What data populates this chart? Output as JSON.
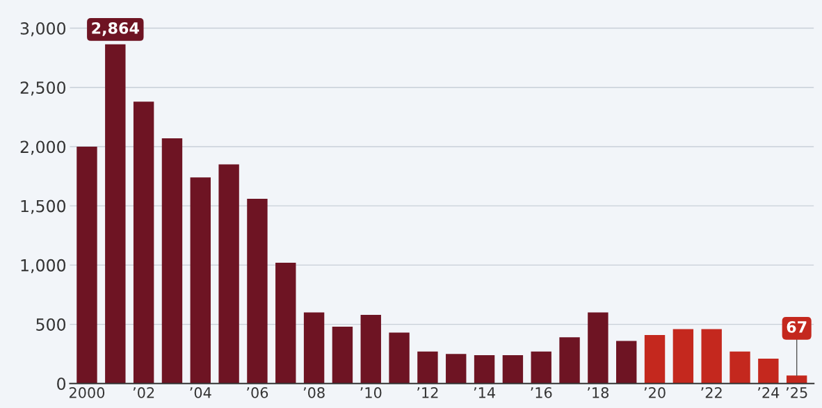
{
  "chart_data": {
    "type": "bar",
    "categories": [
      "2000",
      null,
      "’02",
      null,
      "’04",
      null,
      "’06",
      null,
      "’08",
      null,
      "’10",
      null,
      "’12",
      null,
      "’14",
      null,
      "’16",
      null,
      "’18",
      null,
      "’20",
      null,
      "’22",
      null,
      "’24",
      "’25"
    ],
    "values": [
      2000,
      2864,
      2380,
      2070,
      1740,
      1850,
      1560,
      1020,
      600,
      480,
      580,
      430,
      270,
      250,
      240,
      240,
      270,
      390,
      600,
      360,
      410,
      460,
      460,
      270,
      210,
      67
    ],
    "colors": [
      "#6e1423",
      "#6e1423",
      "#6e1423",
      "#6e1423",
      "#6e1423",
      "#6e1423",
      "#6e1423",
      "#6e1423",
      "#6e1423",
      "#6e1423",
      "#6e1423",
      "#6e1423",
      "#6e1423",
      "#6e1423",
      "#6e1423",
      "#6e1423",
      "#6e1423",
      "#6e1423",
      "#6e1423",
      "#6e1423",
      "#c4281e",
      "#c4281e",
      "#c4281e",
      "#c4281e",
      "#c4281e",
      "#c4281e"
    ],
    "value_labels": [
      null,
      "2,864",
      null,
      null,
      null,
      null,
      null,
      null,
      null,
      null,
      null,
      null,
      null,
      null,
      null,
      null,
      null,
      null,
      null,
      null,
      null,
      null,
      null,
      null,
      null,
      "67"
    ],
    "ylim": [
      0,
      3100
    ],
    "yticks": [
      {
        "value": 0,
        "label": "0"
      },
      {
        "value": 500,
        "label": "500"
      },
      {
        "value": 1000,
        "label": "1,000"
      },
      {
        "value": 1500,
        "label": "1,500"
      },
      {
        "value": 2000,
        "label": "2,000"
      },
      {
        "value": 2500,
        "label": "2,500"
      },
      {
        "value": 3000,
        "label": "3,000"
      }
    ],
    "grid": "y"
  }
}
